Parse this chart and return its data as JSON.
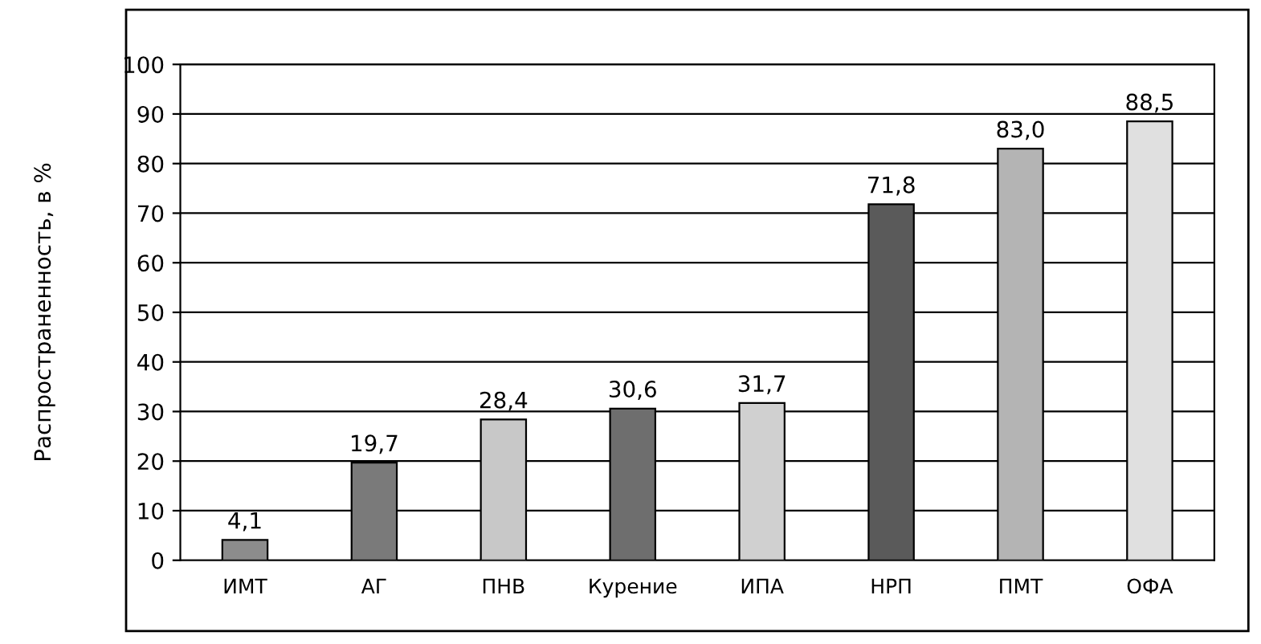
{
  "chart_data": {
    "type": "bar",
    "ylabel": "Распространенность, в %",
    "categories": [
      "ИМТ",
      "АГ",
      "ПНВ",
      "Курение",
      "ИПА",
      "НРП",
      "ПМТ",
      "ОФА"
    ],
    "values": [
      4.1,
      19.7,
      28.4,
      30.6,
      31.7,
      71.8,
      83.0,
      88.5
    ],
    "value_labels": [
      "4,1",
      "19,7",
      "28,4",
      "30,6",
      "31,7",
      "71,8",
      "83,0",
      "88,5"
    ],
    "colors": [
      "#8c8c8c",
      "#7a7a7a",
      "#c8c8c8",
      "#6e6e6e",
      "#d0d0d0",
      "#5a5a5a",
      "#b4b4b4",
      "#e0e0e0"
    ],
    "ylim": [
      0,
      100
    ],
    "yticks": [
      0,
      10,
      20,
      30,
      40,
      50,
      60,
      70,
      80,
      90,
      100
    ],
    "grid": "y"
  }
}
